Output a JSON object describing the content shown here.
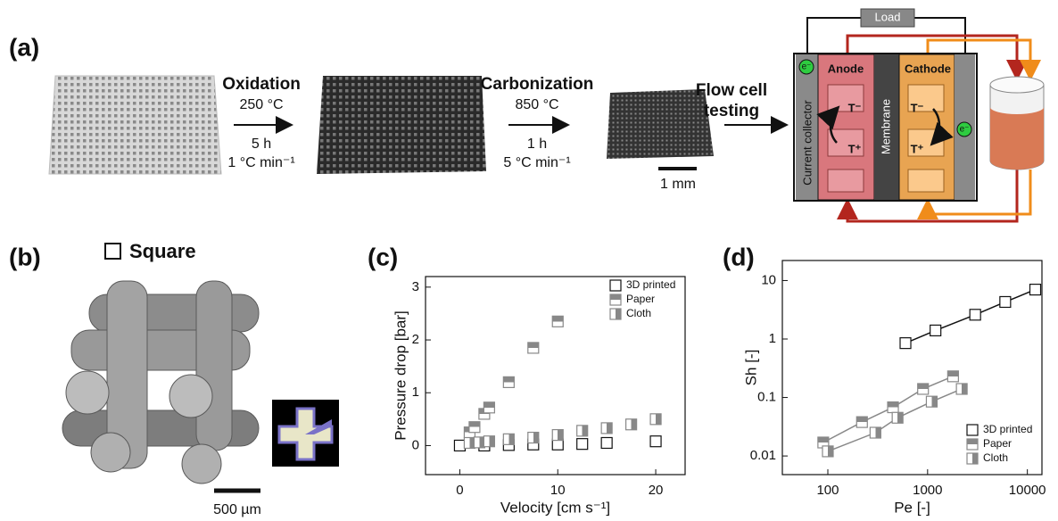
{
  "panel_a": {
    "label": "(a)",
    "steps": [
      {
        "name": "Oxidation",
        "temperature": "250 °C",
        "time": "5 h",
        "rate": "1 °C min⁻¹"
      },
      {
        "name": "Carbonization",
        "temperature": "850 °C",
        "time": "1 h",
        "rate": "5 °C min⁻¹"
      }
    ],
    "final_step": [
      "Flow cell",
      "testing"
    ],
    "scale_bar": "1 mm",
    "cell": {
      "load": "Load",
      "current_collector": "Current collector",
      "anode": "Anode",
      "membrane": "Membrane",
      "cathode": "Cathode",
      "ions": [
        "T⁻",
        "T⁺"
      ],
      "electron": "e⁻"
    }
  },
  "panel_b": {
    "label": "(b)",
    "geometry": "Square",
    "scale_bar": "500 µm"
  },
  "chart_data": [
    {
      "type": "scatter",
      "label": "(c)",
      "x_label": "Velocity [cm s⁻¹]",
      "y_label": "Pressure drop [bar]",
      "xlim": [
        -3.5,
        23
      ],
      "ylim": [
        -0.55,
        3.2
      ],
      "xticks": [
        0,
        10,
        20
      ],
      "yticks": [
        0,
        1,
        2,
        3
      ],
      "legend": "upper right",
      "series": [
        {
          "name": "3D printed",
          "marker": "open",
          "color": "#111111",
          "x": [
            0,
            2.5,
            5,
            7.5,
            10,
            12.5,
            15,
            20
          ],
          "values": [
            0,
            0,
            0.01,
            0.02,
            0.02,
            0.03,
            0.05,
            0.08
          ]
        },
        {
          "name": "Paper",
          "marker": "half-top",
          "color": "#888888",
          "x": [
            1,
            1.5,
            2.5,
            3,
            5,
            7.5,
            10
          ],
          "values": [
            0.25,
            0.35,
            0.6,
            0.72,
            1.2,
            1.85,
            2.35
          ]
        },
        {
          "name": "Cloth",
          "marker": "half-left",
          "color": "#888888",
          "x": [
            1,
            2,
            3,
            5,
            7.5,
            10,
            12.5,
            15,
            17.5,
            20
          ],
          "values": [
            0.05,
            0.06,
            0.08,
            0.12,
            0.15,
            0.2,
            0.28,
            0.33,
            0.4,
            0.5
          ]
        }
      ]
    },
    {
      "type": "scatter",
      "label": "(d)",
      "x_label": "Pe [-]",
      "y_label": "Sh [-]",
      "xlim": [
        35,
        14000
      ],
      "ylim": [
        0.0048,
        22
      ],
      "xticks": [
        100,
        1000,
        10000
      ],
      "yticks": [
        0.01,
        0.1,
        1,
        10
      ],
      "xscale": "log",
      "yscale": "log",
      "lines": true,
      "legend": "lower right",
      "series": [
        {
          "name": "3D printed",
          "marker": "open",
          "color": "#111111",
          "x": [
            600,
            1200,
            3000,
            6000,
            12000
          ],
          "values": [
            0.85,
            1.4,
            2.6,
            4.3,
            7
          ]
        },
        {
          "name": "Paper",
          "marker": "half-top",
          "color": "#888888",
          "x": [
            90,
            220,
            450,
            900,
            1800
          ],
          "values": [
            0.017,
            0.038,
            0.068,
            0.14,
            0.23
          ]
        },
        {
          "name": "Cloth",
          "marker": "half-left",
          "color": "#888888",
          "x": [
            100,
            300,
            500,
            1100,
            2200
          ],
          "values": [
            0.012,
            0.025,
            0.045,
            0.085,
            0.14
          ]
        }
      ]
    }
  ]
}
